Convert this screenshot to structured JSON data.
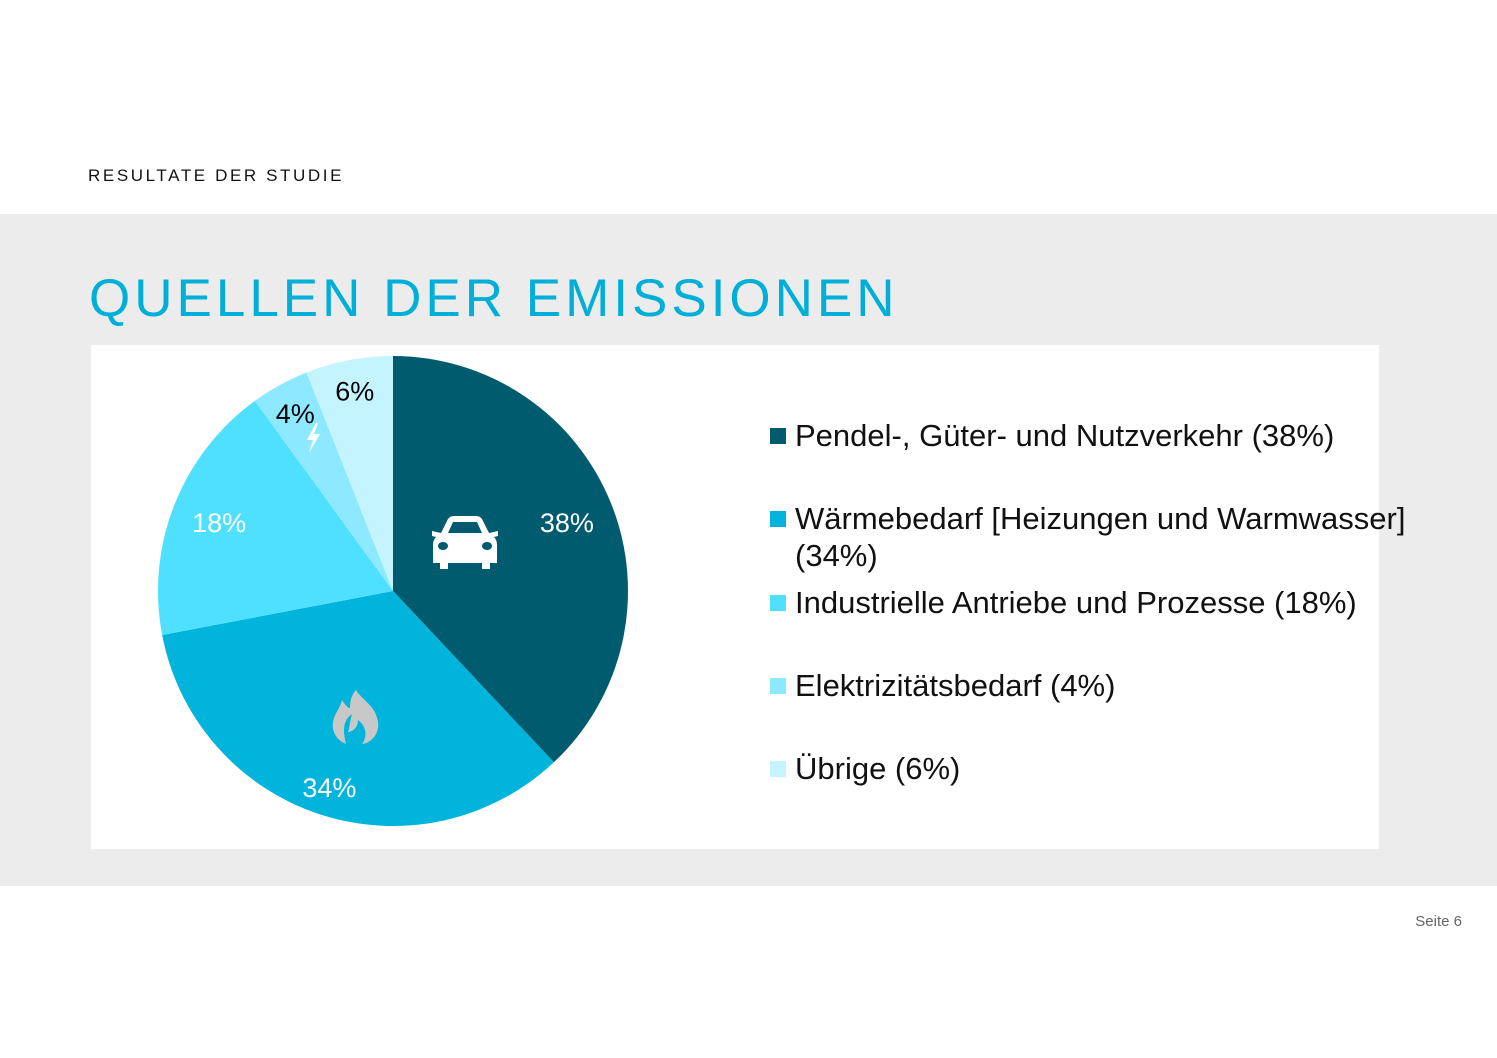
{
  "header": {
    "kicker": "RESULTATE DER STUDIE"
  },
  "slide": {
    "title": "QUELLEN DER EMISSIONEN",
    "page": "Seite 6"
  },
  "chart_data": {
    "type": "pie",
    "title": "",
    "start": "top",
    "direction": "clockwise",
    "slices": [
      {
        "name": "Pendel-, Güter- und Nutzverkehr (38%)",
        "value": 38,
        "label": "38%",
        "color": "#005b6e",
        "label_color": "#ffffff",
        "icon": "car-icon"
      },
      {
        "name": "Wärmebedarf [Heizungen und Warmwasser] (34%)",
        "value": 34,
        "label": "34%",
        "color": "#00b4dc",
        "label_color": "#ffffff",
        "icon": "flame-icon"
      },
      {
        "name": "Industrielle Antriebe und Prozesse (18%)",
        "value": 18,
        "label": "18%",
        "color": "#50e0ff",
        "label_color": "#ffffff",
        "icon": null
      },
      {
        "name": "Elektrizitätsbedarf (4%)",
        "value": 4,
        "label": "4%",
        "color": "#8ce9ff",
        "label_color": "#000000",
        "icon": "lightning-icon"
      },
      {
        "name": "Übrige (6%)",
        "value": 6,
        "label": "6%",
        "color": "#c4f4ff",
        "label_color": "#000000",
        "icon": null
      }
    ],
    "legend_position": "right"
  }
}
